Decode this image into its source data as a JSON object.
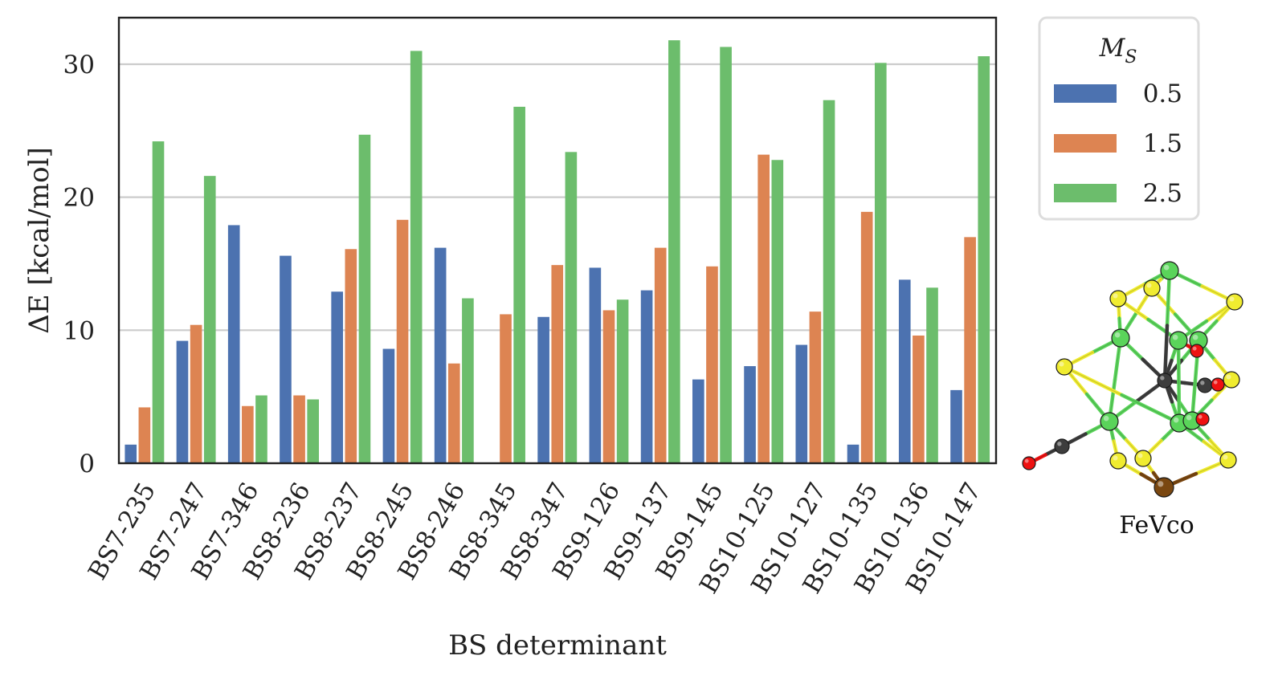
{
  "chart_data": {
    "type": "bar",
    "xlabel": "BS determinant",
    "ylabel": "ΔE [kcal/mol]",
    "ylim": [
      0,
      33.5
    ],
    "yticks": [
      0,
      10,
      20,
      30
    ],
    "grid": "horizontal",
    "categories": [
      "BS7-235",
      "BS7-247",
      "BS7-346",
      "BS8-236",
      "BS8-237",
      "BS8-245",
      "BS8-246",
      "BS8-345",
      "BS8-347",
      "BS9-126",
      "BS9-137",
      "BS9-145",
      "BS10-125",
      "BS10-127",
      "BS10-135",
      "BS10-136",
      "BS10-147"
    ],
    "legend": {
      "title": "M_S",
      "placement": "top-right, outside plot"
    },
    "series": [
      {
        "name": "0.5",
        "color": "#4c72b0",
        "values": [
          1.4,
          9.2,
          17.9,
          15.6,
          12.9,
          8.6,
          16.2,
          0.0,
          11.0,
          14.7,
          13.0,
          6.3,
          7.3,
          8.9,
          1.4,
          13.8,
          5.5
        ]
      },
      {
        "name": "1.5",
        "color": "#dd8452",
        "values": [
          4.2,
          10.4,
          4.3,
          5.1,
          16.1,
          18.3,
          7.5,
          11.2,
          14.9,
          11.5,
          16.2,
          14.8,
          23.2,
          11.4,
          18.9,
          9.6,
          17.0
        ]
      },
      {
        "name": "2.5",
        "color": "#6cbd6c",
        "values": [
          24.2,
          21.6,
          5.1,
          4.8,
          24.7,
          31.0,
          12.4,
          26.8,
          23.4,
          12.3,
          31.8,
          31.3,
          22.8,
          27.3,
          30.1,
          13.2,
          30.6
        ]
      }
    ]
  },
  "molecule": {
    "caption": "FeVco",
    "colors": {
      "iron": "#5ad45a",
      "sulfur": "#f0ec30",
      "carbon": "#3d3d3d",
      "oxygen": "#ee1111",
      "vanadium": "#7a4710"
    }
  }
}
